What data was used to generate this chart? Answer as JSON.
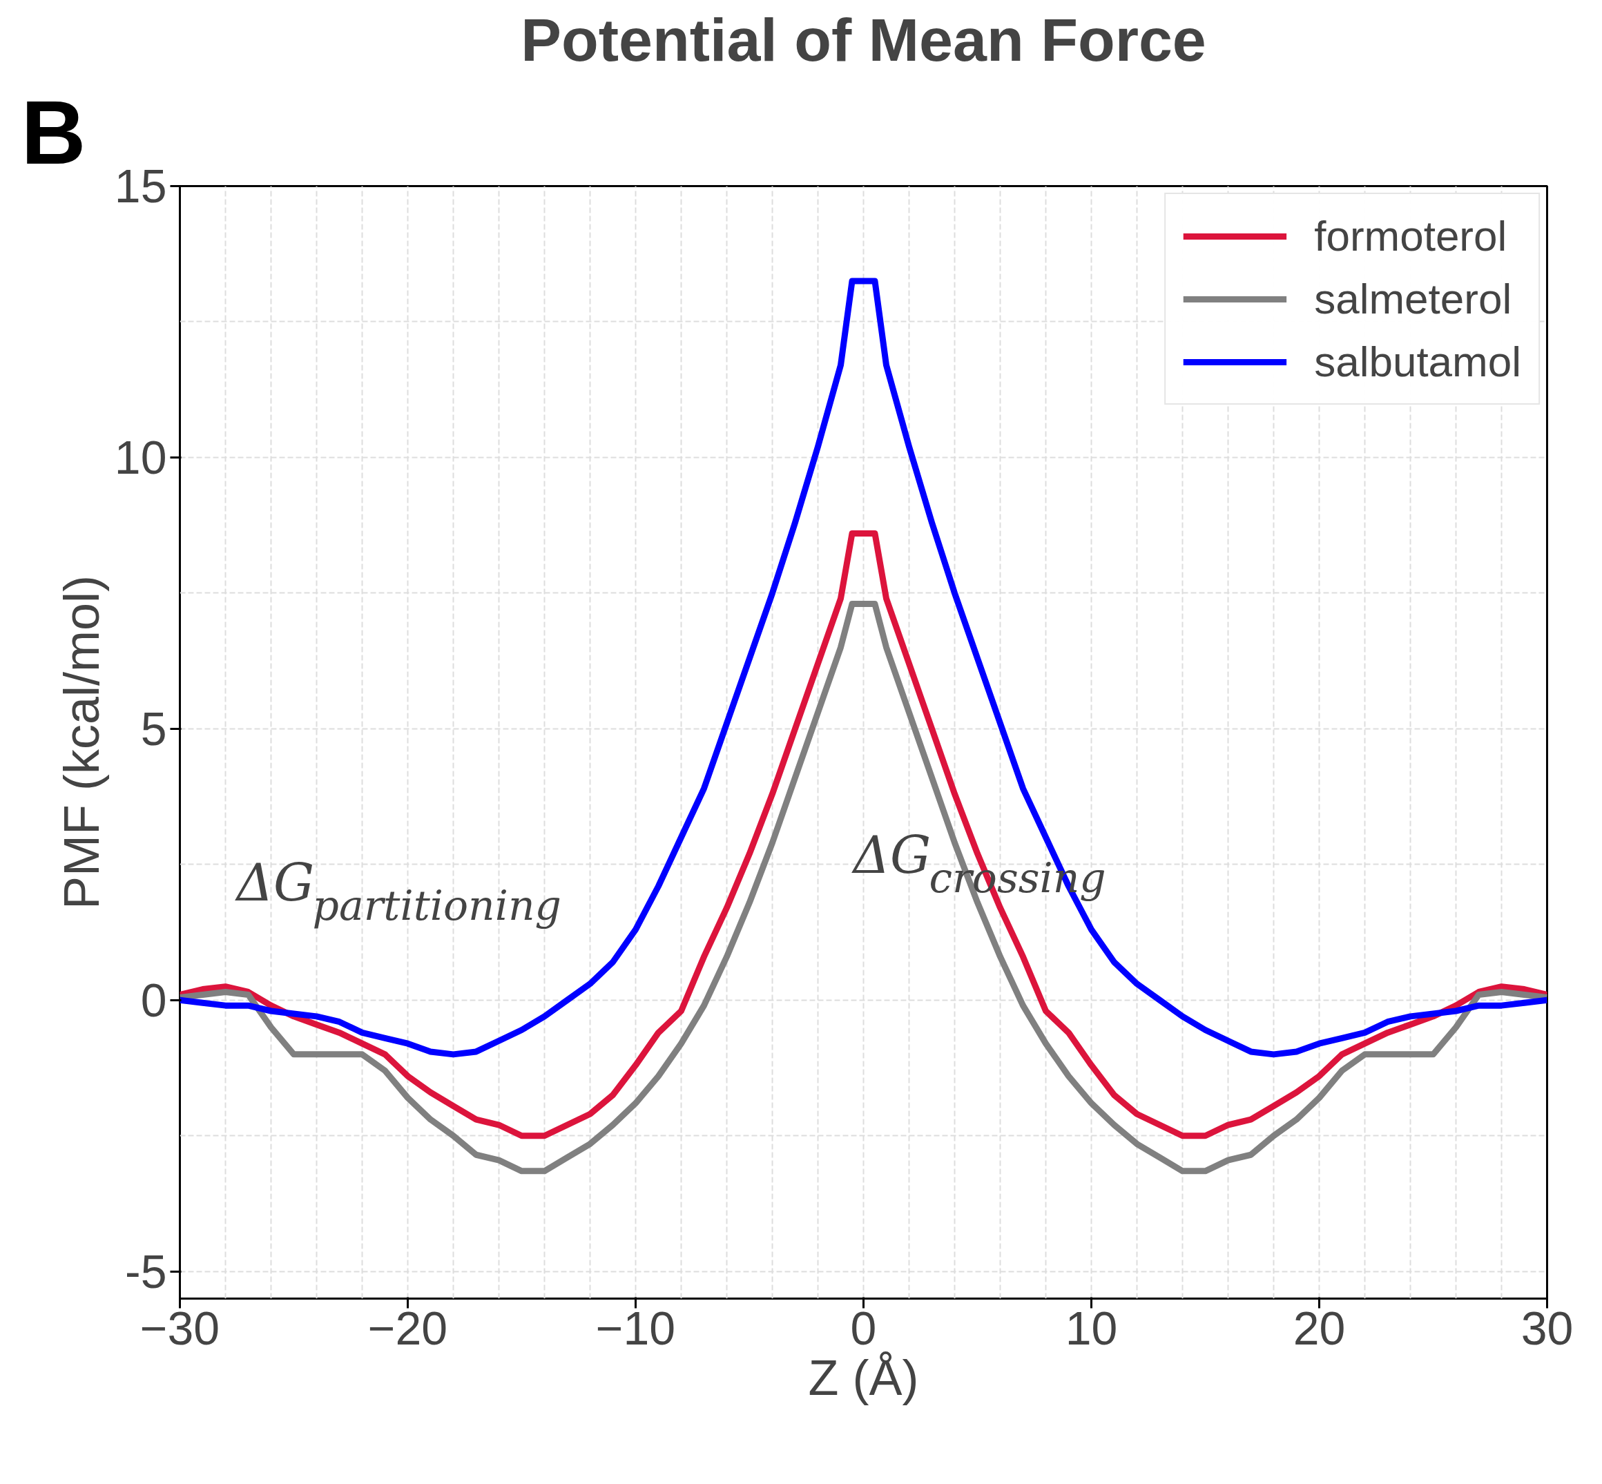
{
  "chart_data": {
    "type": "line",
    "title": "Potential of Mean Force",
    "xlabel": "Z (Å)",
    "ylabel": "PMF (kcal/mol)",
    "x": [
      -30,
      -29,
      -28,
      -27,
      -26,
      -25,
      -24,
      -23,
      -22,
      -21,
      -20,
      -19,
      -18,
      -17,
      -16,
      -15,
      -14,
      -13,
      -12,
      -11,
      -10,
      -9,
      -8,
      -7,
      -6,
      -5,
      -4,
      -3,
      -2,
      -1,
      -0.5,
      0.5,
      1,
      2,
      3,
      4,
      5,
      6,
      7,
      8,
      9,
      10,
      11,
      12,
      13,
      14,
      15,
      16,
      17,
      18,
      19,
      20,
      21,
      22,
      23,
      24,
      25,
      26,
      27,
      28,
      29,
      30
    ],
    "series": [
      {
        "name": "formoterol",
        "color": "#dc143c",
        "values": [
          0.1,
          0.2,
          0.25,
          0.15,
          -0.1,
          -0.3,
          -0.45,
          -0.6,
          -0.8,
          -1.0,
          -1.4,
          -1.7,
          -1.95,
          -2.2,
          -2.3,
          -2.5,
          -2.5,
          -2.3,
          -2.1,
          -1.75,
          -1.2,
          -0.6,
          -0.2,
          0.8,
          1.7,
          2.7,
          3.8,
          5.0,
          6.2,
          7.4,
          8.6,
          8.6,
          7.4,
          6.2,
          5.0,
          3.8,
          2.7,
          1.7,
          0.8,
          -0.2,
          -0.6,
          -1.2,
          -1.75,
          -2.1,
          -2.3,
          -2.5,
          -2.5,
          -2.3,
          -2.2,
          -1.95,
          -1.7,
          -1.4,
          -1.0,
          -0.8,
          -0.6,
          -0.45,
          -0.3,
          -0.1,
          0.15,
          0.25,
          0.2,
          0.1
        ]
      },
      {
        "name": "salmeterol",
        "color": "#808080",
        "values": [
          0.05,
          0.1,
          0.15,
          0.1,
          -0.5,
          -1.0,
          -1.0,
          -1.0,
          -1.0,
          -1.3,
          -1.8,
          -2.2,
          -2.5,
          -2.85,
          -2.95,
          -3.15,
          -3.15,
          -2.9,
          -2.65,
          -2.3,
          -1.9,
          -1.4,
          -0.8,
          -0.1,
          0.8,
          1.8,
          2.9,
          4.1,
          5.3,
          6.5,
          7.3,
          7.3,
          6.5,
          5.3,
          4.1,
          2.9,
          1.8,
          0.8,
          -0.1,
          -0.8,
          -1.4,
          -1.9,
          -2.3,
          -2.65,
          -2.9,
          -3.15,
          -3.15,
          -2.95,
          -2.85,
          -2.5,
          -2.2,
          -1.8,
          -1.3,
          -1.0,
          -1.0,
          -1.0,
          -1.0,
          -0.5,
          0.1,
          0.15,
          0.1,
          0.05
        ]
      },
      {
        "name": "salbutamol",
        "color": "#0000ff",
        "values": [
          0.0,
          -0.05,
          -0.1,
          -0.1,
          -0.2,
          -0.25,
          -0.3,
          -0.4,
          -0.6,
          -0.7,
          -0.8,
          -0.95,
          -1.0,
          -0.95,
          -0.75,
          -0.55,
          -0.3,
          0.0,
          0.3,
          0.7,
          1.3,
          2.1,
          3.0,
          3.9,
          5.1,
          6.3,
          7.5,
          8.8,
          10.2,
          11.7,
          13.25,
          13.25,
          11.7,
          10.2,
          8.8,
          7.5,
          6.3,
          5.1,
          3.9,
          3.0,
          2.1,
          1.3,
          0.7,
          0.3,
          0.0,
          -0.3,
          -0.55,
          -0.75,
          -0.95,
          -1.0,
          -0.95,
          -0.8,
          -0.7,
          -0.6,
          -0.4,
          -0.3,
          -0.25,
          -0.2,
          -0.1,
          -0.1,
          -0.05,
          0.0
        ]
      }
    ],
    "xlim": [
      -30,
      30
    ],
    "ylim": [
      -5.5,
      15
    ],
    "xticks": [
      {
        "value": -30,
        "label": "−30"
      },
      {
        "value": -20,
        "label": "−20"
      },
      {
        "value": -10,
        "label": "−10"
      },
      0,
      10,
      20,
      30
    ],
    "yticks": [
      -5,
      0,
      5,
      10,
      15
    ],
    "grid": true,
    "legend": "top right",
    "marker": "none",
    "line_style": "solid",
    "annotations": [
      "B",
      "ΔG$_{partitioning}$",
      "ΔG$_{crossing}$"
    ]
  }
}
